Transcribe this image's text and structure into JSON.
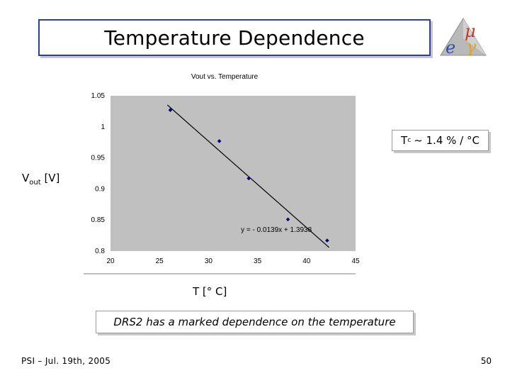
{
  "slide": {
    "title": "Temperature Dependence",
    "tc_prefix": "T",
    "tc_sub": "c",
    "tc_value": "~ 1.4 % / °C",
    "ylabel_main": "V",
    "ylabel_sub": "out",
    "ylabel_unit": "[V]",
    "xlabel": "T [° C]",
    "note": "DRS2  has a marked dependence on the temperature",
    "footer_left": "PSI – Jul. 19th, 2005",
    "page_number": "50",
    "logo_mu": "μ",
    "logo_e": "e",
    "logo_gamma": "γ"
  },
  "chart_data": {
    "type": "scatter",
    "title": "Vout vs. Temperature",
    "xlim": [
      20,
      45
    ],
    "ylim": [
      0.8,
      1.05
    ],
    "xticks": [
      "20",
      "25",
      "30",
      "35",
      "40",
      "45"
    ],
    "yticks": [
      "1.05",
      "1",
      "0.95",
      "0.9",
      "0.85",
      "0.8"
    ],
    "points": [
      {
        "x": 26.1,
        "y": 1.027
      },
      {
        "x": 31.1,
        "y": 0.977
      },
      {
        "x": 34.1,
        "y": 0.917
      },
      {
        "x": 38.1,
        "y": 0.851
      },
      {
        "x": 42.1,
        "y": 0.817
      }
    ],
    "trendline": {
      "slope": -0.0139,
      "intercept": 1.3938,
      "x_range": [
        25.8,
        42.3
      ]
    },
    "equation": "y = - 0.0139x + 1.3938",
    "grid": false,
    "colors": {
      "plot_bg": "#c0c0c0",
      "marker": "#000080",
      "line": "#000000"
    }
  }
}
